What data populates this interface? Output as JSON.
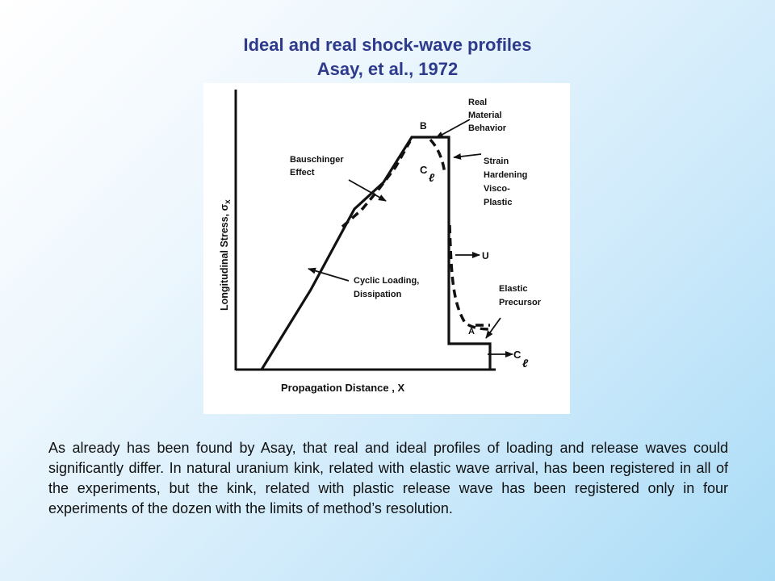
{
  "title": {
    "line1": "Ideal and real shock-wave profiles",
    "line2": "Asay, et al., 1972"
  },
  "figure": {
    "y_axis_label": "Longitudinal Stress, σ",
    "y_axis_subscript": "x",
    "x_axis_label": "Propagation Distance , X",
    "labels": {
      "b": "B",
      "a": "A",
      "cl_top": "C",
      "cl_bottom": "C",
      "cl_symbol": "ℓ",
      "u": "U",
      "real_material_1": "Real",
      "real_material_2": "Material",
      "real_material_3": "Behavior",
      "bauschinger_1": "Bauschinger",
      "bauschinger_2": "Effect",
      "strain_1": "Strain",
      "strain_2": "Hardening",
      "strain_3": "Visco-",
      "strain_4": "Plastic",
      "cyclic_1": "Cyclic Loading,",
      "cyclic_2": "Dissipation",
      "elastic_1": "Elastic",
      "elastic_2": "Precursor"
    }
  },
  "paragraph": "As already has been found by Asay, that  real and ideal profiles of loading and release waves could significantly differ. In natural uranium kink, related with elastic wave arrival, has been registered in all of the experiments, but the kink, related with plastic release wave has been registered only in four experiments of the dozen with the limits of method’s resolution."
}
